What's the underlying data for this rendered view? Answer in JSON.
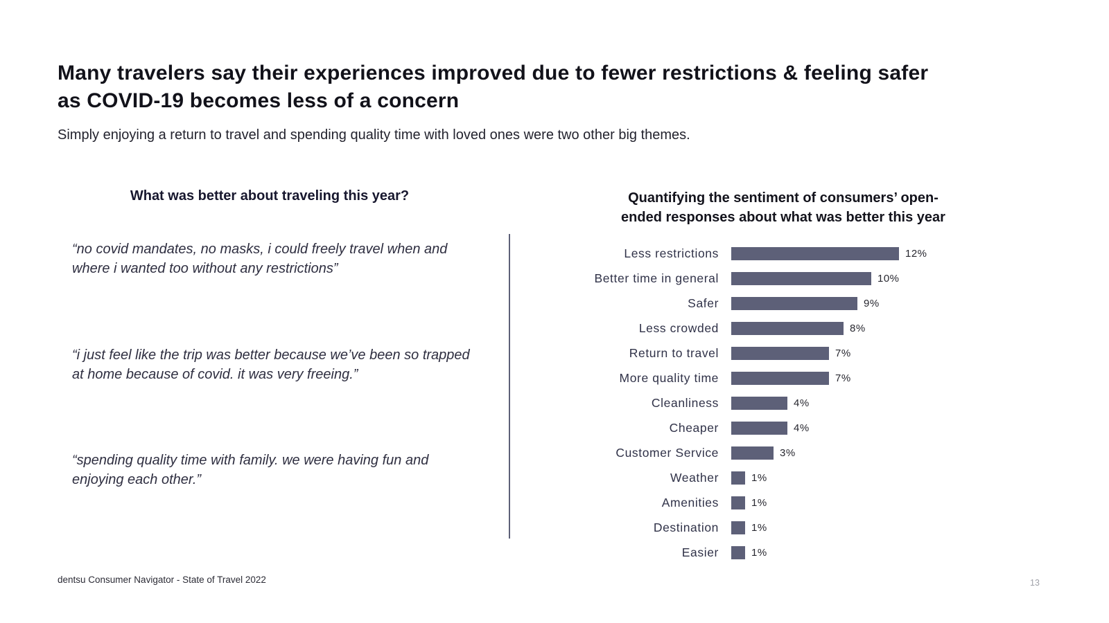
{
  "slide": {
    "title": "Many travelers say their experiences improved due to fewer restrictions & feeling safer as COVID-19 becomes less of a concern",
    "title_lines": [
      "Many travelers say their experiences improved due to fewer restrictions & feeling safer",
      "as COVID-19 becomes less of a concern"
    ],
    "subtitle": "Simply enjoying a return to travel and spending quality time with loved ones were two other big themes.",
    "footer_source": "dentsu Consumer Navigator - State of Travel 2022",
    "page_number": "13"
  },
  "quotes_panel": {
    "heading": "What was better about traveling this year?",
    "quotes": [
      "“no covid mandates, no masks, i could freely travel when and where i wanted too without any restrictions”",
      "“i just feel like the trip was better because we’ve been so trapped at home because of covid. it was very freeing.”",
      "“spending quality time with family.  we were having fun and enjoying each other.”"
    ]
  },
  "chart_data": {
    "type": "bar",
    "orientation": "horizontal",
    "title": "Quantifying the sentiment of consumers’ open-ended responses about what was better this year",
    "title_lines": [
      "Quantifying the sentiment of consumers’ open-",
      "ended responses about what was better this year"
    ],
    "categories": [
      "Less restrictions",
      "Better time in general",
      "Safer",
      "Less crowded",
      "Return to travel",
      "More quality time",
      "Cleanliness",
      "Cheaper",
      "Customer Service",
      "Weather",
      "Amenities",
      "Destination",
      "Easier"
    ],
    "values": [
      12,
      10,
      9,
      8,
      7,
      7,
      4,
      4,
      3,
      1,
      1,
      1,
      1
    ],
    "value_labels": [
      "12%",
      "10%",
      "9%",
      "8%",
      "7%",
      "7%",
      "4%",
      "4%",
      "3%",
      "1%",
      "1%",
      "1%",
      "1%"
    ],
    "xlabel": "",
    "ylabel": "",
    "xlim": [
      0,
      12
    ],
    "grid": false,
    "legend": false,
    "bar_color": "#5d6078"
  },
  "colors": {
    "accent_bar": "#5d6078",
    "divider": "#5d6078",
    "title_text": "#12121a",
    "body_text": "#2e2e40",
    "page_number": "#9fa1a8",
    "background": "#ffffff"
  }
}
